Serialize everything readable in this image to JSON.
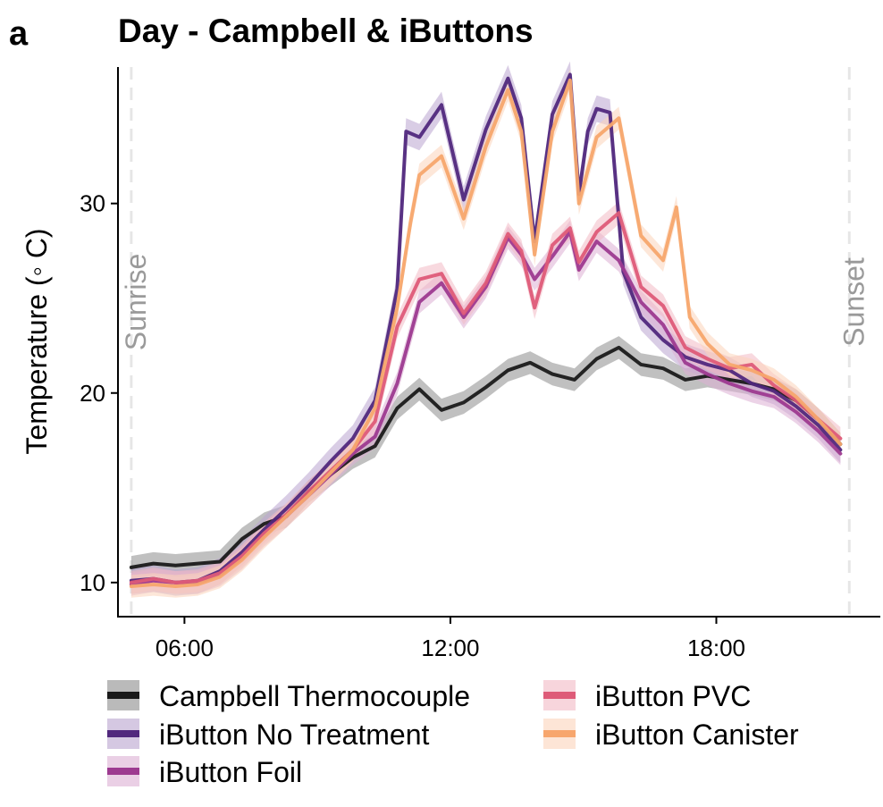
{
  "chart_data": {
    "panel_letter": "a",
    "title": "Day - Campbell & iButtons",
    "type": "line",
    "xlabel": "",
    "ylabel": "Temperature (◦ C)",
    "xlim": [
      4.5,
      21.7
    ],
    "ylim": [
      8.2,
      37.2
    ],
    "x_ticks": [
      6,
      12,
      18
    ],
    "x_tick_labels": [
      "06:00",
      "12:00",
      "18:00"
    ],
    "y_ticks": [
      10,
      20,
      30
    ],
    "y_tick_labels": [
      "10",
      "20",
      "30"
    ],
    "grid": false,
    "legend_position": "bottom",
    "annotations": [
      {
        "label": "Sunrise",
        "x": 4.8,
        "style": "dashed vertical line"
      },
      {
        "label": "Sunset",
        "x": 21.0,
        "style": "dashed vertical line"
      }
    ],
    "series": [
      {
        "name": "Campbell Thermocouple",
        "color": "#1a1a1a",
        "band_color": "#8c8c8c",
        "band_width": 0.6,
        "x": [
          4.8,
          5.3,
          5.8,
          6.3,
          6.8,
          7.3,
          7.8,
          8.3,
          8.8,
          9.3,
          9.8,
          10.3,
          10.8,
          11.3,
          11.8,
          12.3,
          12.8,
          13.3,
          13.8,
          14.3,
          14.8,
          15.3,
          15.8,
          16.3,
          16.8,
          17.3,
          17.8,
          18.3,
          18.8,
          19.3,
          19.8,
          20.3,
          20.8
        ],
        "y": [
          10.8,
          11.0,
          10.9,
          11.0,
          11.1,
          12.3,
          13.1,
          13.5,
          14.8,
          15.7,
          16.6,
          17.2,
          19.2,
          20.2,
          19.1,
          19.5,
          20.3,
          21.2,
          21.6,
          21.0,
          20.7,
          21.8,
          22.4,
          21.5,
          21.3,
          20.7,
          20.9,
          20.7,
          20.5,
          20.2,
          19.6,
          18.6,
          17.3
        ]
      },
      {
        "name": "iButton No Treatment",
        "color": "#51287d",
        "band_color": "#b9a4cf",
        "band_width": 0.7,
        "x": [
          4.8,
          5.3,
          5.8,
          6.3,
          6.8,
          7.3,
          7.8,
          8.3,
          8.8,
          9.3,
          9.8,
          10.3,
          10.8,
          11.0,
          11.3,
          11.8,
          12.3,
          12.8,
          13.3,
          13.6,
          13.9,
          14.3,
          14.7,
          14.9,
          15.1,
          15.3,
          15.6,
          15.9,
          16.3,
          16.8,
          17.3,
          17.8,
          18.3,
          18.8,
          19.3,
          19.8,
          20.3,
          20.8
        ],
        "y": [
          10.1,
          10.2,
          10.0,
          10.1,
          10.6,
          11.6,
          12.8,
          13.9,
          15.1,
          16.4,
          17.6,
          19.6,
          25.5,
          33.8,
          33.5,
          35.2,
          30.2,
          33.9,
          36.6,
          34.5,
          28.0,
          34.7,
          36.8,
          30.5,
          33.8,
          35.0,
          34.8,
          26.4,
          24.0,
          22.8,
          21.9,
          21.5,
          21.2,
          20.5,
          20.1,
          19.3,
          18.3,
          17.0
        ]
      },
      {
        "name": "iButton Foil",
        "color": "#9d3a90",
        "band_color": "#dcafd4",
        "band_width": 0.6,
        "x": [
          4.8,
          5.3,
          5.8,
          6.3,
          6.8,
          7.3,
          7.8,
          8.3,
          8.8,
          9.3,
          9.8,
          10.3,
          10.8,
          11.3,
          11.8,
          12.3,
          12.8,
          13.3,
          13.6,
          13.9,
          14.3,
          14.7,
          14.9,
          15.3,
          15.8,
          16.3,
          16.8,
          17.3,
          17.8,
          18.3,
          18.8,
          19.3,
          19.8,
          20.3,
          20.8
        ],
        "y": [
          9.9,
          10.1,
          10.0,
          10.0,
          10.4,
          11.3,
          12.5,
          13.5,
          14.6,
          15.7,
          16.8,
          17.7,
          20.5,
          24.8,
          25.8,
          24.0,
          25.6,
          28.2,
          27.3,
          26.0,
          27.2,
          28.5,
          26.5,
          28.0,
          27.0,
          24.8,
          23.6,
          21.6,
          21.0,
          20.5,
          20.1,
          19.8,
          19.0,
          18.0,
          16.8
        ]
      },
      {
        "name": "iButton PVC",
        "color": "#de5b78",
        "band_color": "#f2b9c5",
        "band_width": 0.6,
        "x": [
          4.8,
          5.3,
          5.8,
          6.3,
          6.8,
          7.3,
          7.8,
          8.3,
          8.8,
          9.3,
          9.8,
          10.3,
          10.8,
          11.3,
          11.8,
          12.3,
          12.8,
          13.3,
          13.6,
          13.9,
          14.3,
          14.7,
          14.9,
          15.3,
          15.8,
          16.3,
          16.8,
          17.3,
          17.8,
          18.3,
          18.8,
          19.3,
          19.8,
          20.3,
          20.8
        ],
        "y": [
          10.0,
          10.2,
          10.0,
          10.1,
          10.5,
          11.4,
          12.6,
          13.6,
          14.8,
          15.9,
          17.0,
          18.5,
          23.5,
          26.0,
          26.3,
          24.2,
          25.8,
          28.4,
          27.5,
          24.5,
          27.8,
          28.7,
          26.9,
          28.5,
          29.5,
          25.6,
          24.6,
          22.4,
          21.8,
          21.3,
          21.5,
          20.4,
          19.6,
          18.6,
          17.6
        ]
      },
      {
        "name": "iButton Canister",
        "color": "#f7a66d",
        "band_color": "#fcd4ba",
        "band_width": 0.6,
        "x": [
          4.8,
          5.3,
          5.8,
          6.3,
          6.8,
          7.3,
          7.8,
          8.3,
          8.8,
          9.3,
          9.8,
          10.3,
          10.8,
          11.1,
          11.3,
          11.8,
          12.3,
          12.8,
          13.3,
          13.6,
          13.9,
          14.3,
          14.7,
          14.9,
          15.3,
          15.8,
          16.3,
          16.8,
          17.1,
          17.4,
          17.8,
          18.3,
          18.8,
          19.3,
          19.8,
          20.3,
          20.8
        ],
        "y": [
          9.8,
          9.9,
          9.8,
          9.9,
          10.3,
          11.2,
          12.4,
          13.5,
          14.6,
          15.8,
          17.0,
          19.2,
          24.5,
          29.0,
          31.5,
          32.5,
          29.2,
          33.0,
          36.0,
          33.8,
          27.3,
          33.8,
          36.5,
          30.0,
          33.5,
          34.5,
          28.3,
          27.0,
          29.8,
          24.0,
          22.6,
          21.5,
          21.2,
          20.7,
          19.8,
          18.6,
          17.3
        ]
      }
    ]
  }
}
